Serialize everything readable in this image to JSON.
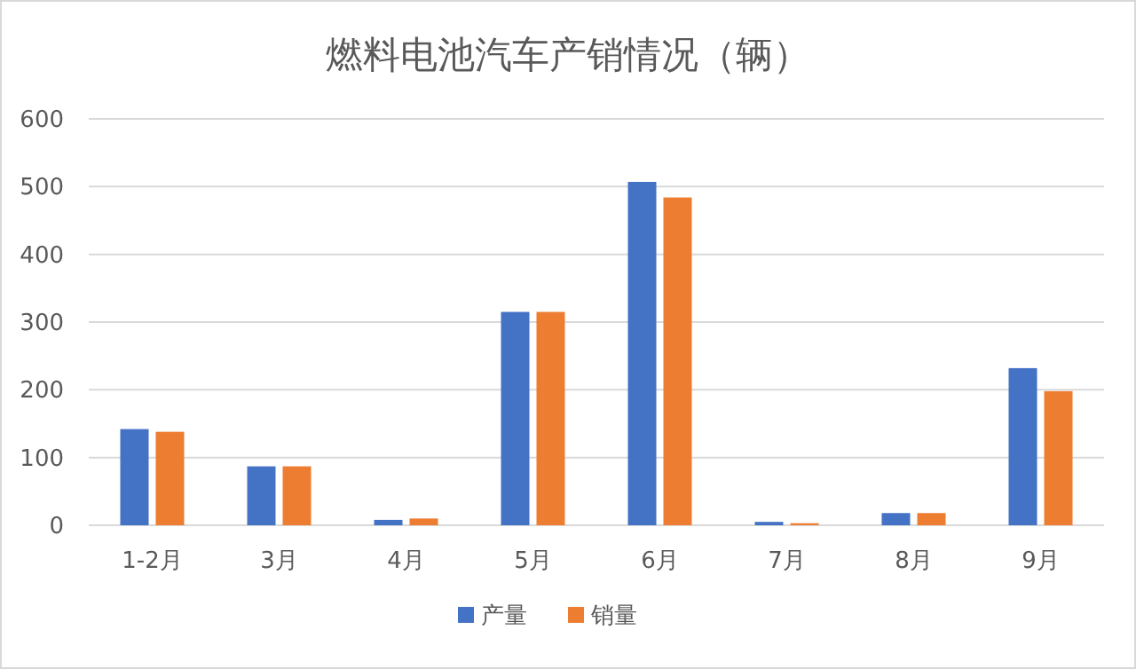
{
  "chart_data": {
    "type": "bar",
    "title": "燃料电池汽车产销情况（辆）",
    "categories": [
      "1-2月",
      "3月",
      "4月",
      "5月",
      "6月",
      "7月",
      "8月",
      "9月"
    ],
    "series": [
      {
        "name": "产量",
        "color": "#4472c4",
        "values": [
          142,
          87,
          8,
          315,
          507,
          5,
          18,
          232
        ]
      },
      {
        "name": "销量",
        "color": "#ed7d31",
        "values": [
          138,
          87,
          10,
          315,
          484,
          3,
          18,
          198
        ]
      }
    ],
    "ylim": [
      0,
      600
    ],
    "yticks": [
      0,
      100,
      200,
      300,
      400,
      500,
      600
    ],
    "grid": "y",
    "legend": "bottom"
  }
}
